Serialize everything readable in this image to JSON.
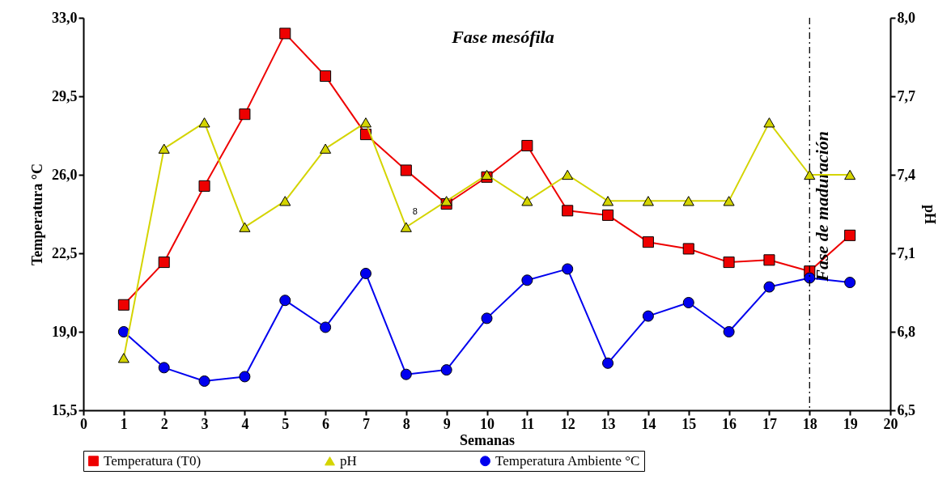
{
  "chart_data": {
    "type": "line",
    "xlabel": "Semanas",
    "ylabel": "Temperatura °C",
    "y2label": "pH",
    "x": [
      1,
      2,
      3,
      4,
      5,
      6,
      7,
      8,
      9,
      10,
      11,
      12,
      13,
      14,
      15,
      16,
      17,
      18,
      19
    ],
    "series": [
      {
        "name": "Temperatura (T0)",
        "color": "#ee0000",
        "marker": "square",
        "values": [
          20.2,
          22.1,
          25.5,
          28.7,
          32.3,
          30.4,
          27.8,
          26.2,
          24.7,
          25.9,
          27.3,
          24.4,
          24.2,
          23.0,
          22.7,
          22.1,
          22.2,
          21.7,
          23.3
        ]
      },
      {
        "name": "pH",
        "color": "#d4d400",
        "marker": "triangle",
        "axis": "y2",
        "values": [
          6.7,
          7.5,
          7.6,
          7.2,
          7.3,
          7.5,
          7.6,
          7.2,
          7.3,
          7.4,
          7.3,
          7.4,
          7.3,
          7.3,
          7.3,
          7.3,
          7.6,
          7.4,
          7.4
        ]
      },
      {
        "name": "Temperatura Ambiente °C",
        "color": "#0000ee",
        "marker": "circle",
        "values": [
          19.0,
          17.4,
          16.8,
          17.0,
          20.4,
          19.2,
          21.6,
          17.1,
          17.3,
          19.6,
          21.3,
          21.8,
          17.6,
          19.7,
          20.3,
          19.0,
          21.0,
          21.4,
          21.2
        ]
      }
    ],
    "xlim": [
      0,
      20
    ],
    "xticks": [
      0,
      1,
      2,
      3,
      4,
      5,
      6,
      7,
      8,
      9,
      10,
      11,
      12,
      13,
      14,
      15,
      16,
      17,
      18,
      19,
      20
    ],
    "ylim": [
      15.5,
      33
    ],
    "yticks": [
      {
        "value": 15.5,
        "label": "15,5"
      },
      {
        "value": 19,
        "label": "19,0"
      },
      {
        "value": 22.5,
        "label": "22,5"
      },
      {
        "value": 26,
        "label": "26,0"
      },
      {
        "value": 29.5,
        "label": "29,5"
      },
      {
        "value": 33,
        "label": "33,0"
      }
    ],
    "y2lim": [
      6.5,
      8
    ],
    "y2ticks": [
      {
        "value": 6.5,
        "label": "6,5"
      },
      {
        "value": 6.8,
        "label": "6,8"
      },
      {
        "value": 7.1,
        "label": "7,1"
      },
      {
        "value": 7.4,
        "label": "7,4"
      },
      {
        "value": 7.7,
        "label": "7,7"
      },
      {
        "value": 8,
        "label": "8,0"
      }
    ],
    "ref_lines": [
      {
        "axis": "x",
        "value": 18,
        "label": "Fase de maduración",
        "color": "#000000",
        "line_style": "dashed"
      }
    ],
    "annotations": [
      "Fase mesófila",
      "8"
    ],
    "legend": "bottom",
    "grid": false,
    "line_style": "solid"
  }
}
